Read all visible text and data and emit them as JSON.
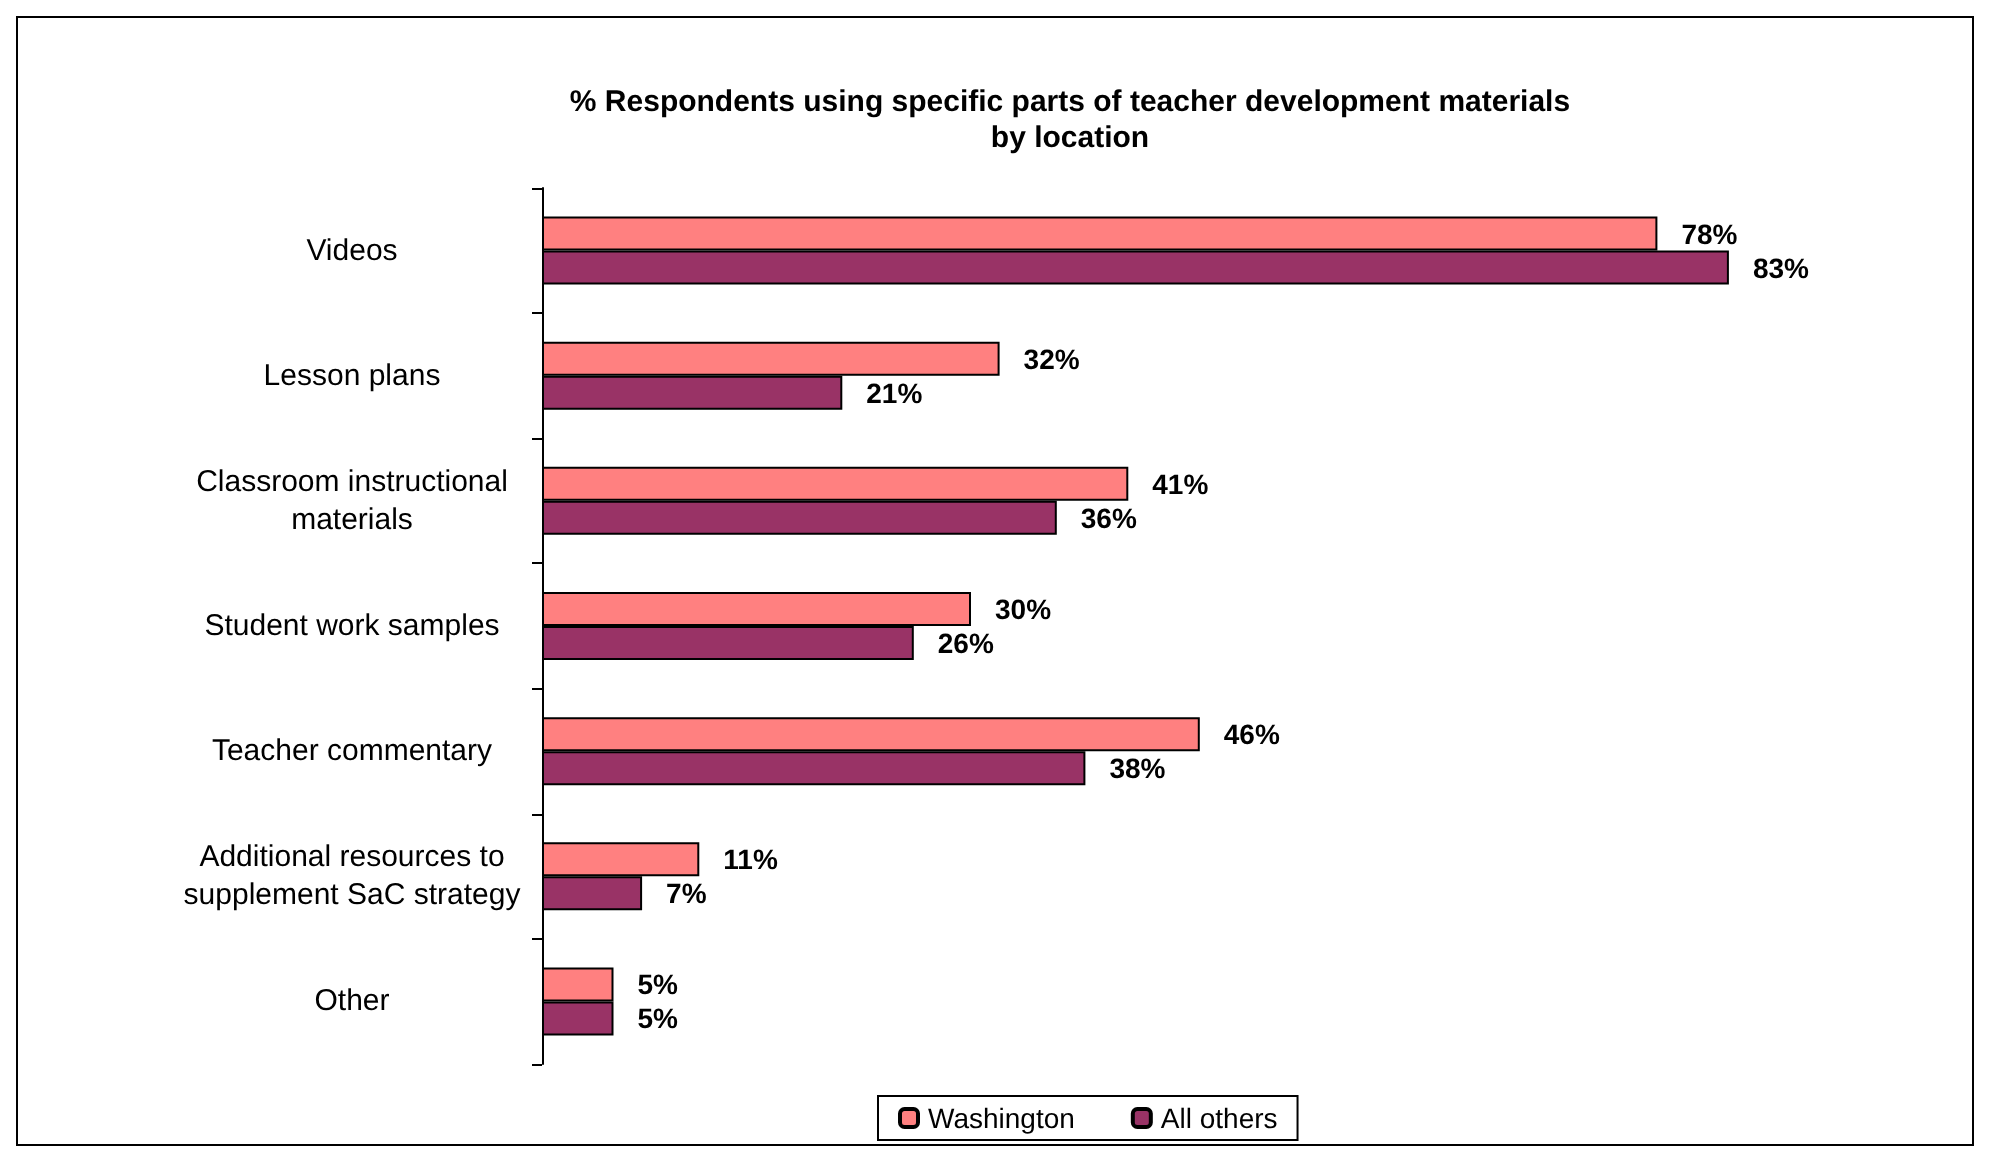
{
  "chart_data": {
    "type": "bar",
    "orientation": "horizontal",
    "title": "% Respondents using specific parts of teacher development materials\nby location",
    "categories": [
      "Videos",
      "Lesson plans",
      "Classroom instructional\nmaterials",
      "Student work samples",
      "Teacher commentary",
      "Additional resources to\nsupplement SaC strategy",
      "Other"
    ],
    "series": [
      {
        "name": "Washington",
        "color": "#ff8080",
        "values": [
          78,
          32,
          41,
          30,
          46,
          11,
          5
        ],
        "value_labels": [
          "78%",
          "32%",
          "41%",
          "30%",
          "46%",
          "11%",
          "5%"
        ]
      },
      {
        "name": "All others",
        "color": "#993366",
        "values": [
          83,
          21,
          36,
          26,
          38,
          7,
          5
        ],
        "value_labels": [
          "83%",
          "21%",
          "36%",
          "26%",
          "38%",
          "7%",
          "5%"
        ]
      }
    ],
    "xlim": [
      0,
      100
    ],
    "tick_labels": "y",
    "legend": "bottom"
  }
}
